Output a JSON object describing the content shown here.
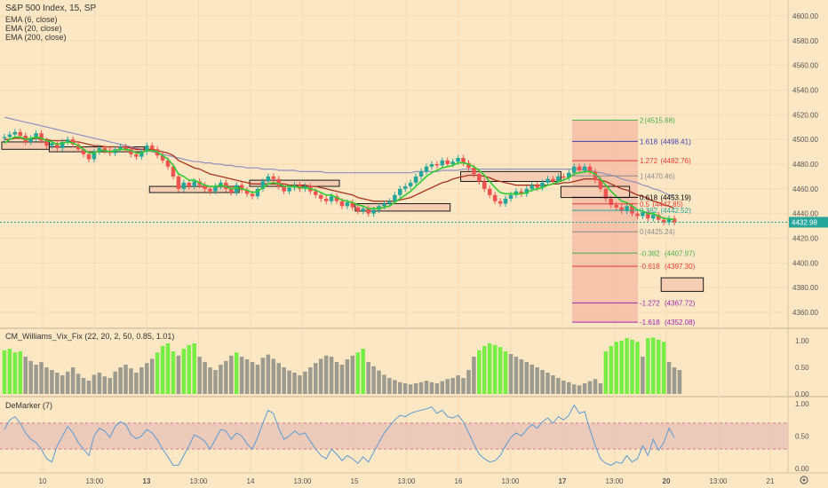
{
  "header": {
    "title": "S&P 500 Index, 15, SP",
    "studies": [
      "EMA (6, close)",
      "EMA (20, close)",
      "EMA (200, close)"
    ]
  },
  "price_scale": {
    "ticks": [
      "4600.00",
      "4580.00",
      "4560.00",
      "4540.00",
      "4520.00",
      "4500.00",
      "4480.00",
      "4460.00",
      "4440.00",
      "4420.00",
      "4400.00",
      "4380.00",
      "4360.00"
    ],
    "last_price": "4432.98"
  },
  "fib_levels": [
    {
      "ratio": "2",
      "price": "4515.68",
      "color": "#4caf50"
    },
    {
      "ratio": "1.618",
      "price": "4498.41",
      "color": "#3f3fb0"
    },
    {
      "ratio": "1.272",
      "price": "4482.76",
      "color": "#e53935"
    },
    {
      "ratio": "1",
      "price": "4470.46",
      "color": "#8a8a8a"
    },
    {
      "ratio": "0.618",
      "price": "4453.19",
      "color": "#000000"
    },
    {
      "ratio": "0.5",
      "price": "4447.85",
      "color": "#e53935"
    },
    {
      "ratio": "0.382",
      "price": "4442.52",
      "color": "#26a69a"
    },
    {
      "ratio": "0",
      "price": "4425.24",
      "color": "#8a8a8a"
    },
    {
      "ratio": "-0.382",
      "price": "4407.97",
      "color": "#4caf50"
    },
    {
      "ratio": "-0.618",
      "price": "4397.30",
      "color": "#e53935"
    },
    {
      "ratio": "-1.272",
      "price": "4367.72",
      "color": "#9c27b0"
    },
    {
      "ratio": "-1.618",
      "price": "4352.08",
      "color": "#9c27b0"
    }
  ],
  "vix_panel": {
    "label": "CM_Williams_Vix_Fix (22, 20, 2, 50, 0.85, 1.01)",
    "ticks": [
      "1.00",
      "0.50",
      "0.00"
    ]
  },
  "demarker_panel": {
    "label": "DeMarker (7)",
    "ticks": [
      "1.00",
      "0.50",
      "0.00"
    ]
  },
  "time_axis": [
    "10",
    "13:00",
    "13",
    "13:00",
    "14",
    "13:00",
    "15",
    "13:00",
    "16",
    "13:00",
    "17",
    "13:00",
    "20",
    "13:00",
    "21"
  ],
  "colors": {
    "background": "#fce7c4",
    "up_candle": "#26a69a",
    "down_candle": "#ef5350",
    "ema6": "#2ecc2e",
    "ema20": "#a5321e",
    "ema200": "#8f8fc0",
    "vix_high": "#76ee44",
    "vix_low": "#9b9b8f",
    "demarker_line": "#5b9bd5",
    "demarker_band": "#e6c3b6"
  },
  "chart_data": {
    "type": "candlestick",
    "title": "S&P 500 Index, 15, SP",
    "y_range": [
      4350,
      4610
    ],
    "price_series": [
      4502,
      4504,
      4506,
      4503,
      4498,
      4501,
      4505,
      4499,
      4495,
      4497,
      4493,
      4498,
      4500,
      4496,
      4492,
      4488,
      4484,
      4490,
      4493,
      4491,
      4489,
      4492,
      4494,
      4492,
      4488,
      4486,
      4490,
      4495,
      4492,
      4487,
      4483,
      4478,
      4470,
      4460,
      4465,
      4462,
      4466,
      4463,
      4460,
      4458,
      4462,
      4465,
      4460,
      4457,
      4463,
      4459,
      4456,
      4454,
      4460,
      4466,
      4470,
      4468,
      4462,
      4458,
      4461,
      4463,
      4460,
      4462,
      4458,
      4455,
      4452,
      4450,
      4454,
      4450,
      4446,
      4449,
      4445,
      4442,
      4444,
      4440,
      4443,
      4446,
      4448,
      4450,
      4455,
      4460,
      4462,
      4465,
      4470,
      4474,
      4478,
      4480,
      4479,
      4483,
      4480,
      4482,
      4485,
      4481,
      4477,
      4472,
      4466,
      4460,
      4455,
      4450,
      4448,
      4452,
      4455,
      4458,
      4456,
      4460,
      4463,
      4461,
      4465,
      4468,
      4466,
      4470,
      4469,
      4473,
      4478,
      4475,
      4478,
      4474,
      4467,
      4460,
      4452,
      4447,
      4445,
      4442,
      4446,
      4440,
      4438,
      4441,
      4436,
      4439,
      4435,
      4433,
      4436,
      4433
    ],
    "ema6": [
      4497,
      4500,
      4502,
      4502,
      4500,
      4501,
      4502,
      4501,
      4499,
      4498,
      4496,
      4497,
      4498,
      4497,
      4495,
      4492,
      4489,
      4489,
      4491,
      4491,
      4490,
      4491,
      4492,
      4492,
      4491,
      4489,
      4489,
      4491,
      4491,
      4490,
      4487,
      4484,
      4479,
      4472,
      4470,
      4467,
      4467,
      4465,
      4463,
      4462,
      4462,
      4463,
      4462,
      4460,
      4461,
      4460,
      4459,
      4457,
      4458,
      4461,
      4464,
      4465,
      4464,
      4462,
      4462,
      4462,
      4461,
      4461,
      4460,
      4459,
      4457,
      4455,
      4455,
      4453,
      4451,
      4450,
      4449,
      4447,
      4446,
      4444,
      4444,
      4444,
      4445,
      4446,
      4449,
      4452,
      4455,
      4458,
      4462,
      4466,
      4470,
      4473,
      4475,
      4477,
      4478,
      4479,
      4481,
      4481,
      4480,
      4478,
      4475,
      4471,
      4466,
      4461,
      4457,
      4456,
      4456,
      4456,
      4456,
      4457,
      4459,
      4460,
      4461,
      4463,
      4464,
      4466,
      4467,
      4469,
      4472,
      4473,
      4474,
      4474,
      4472,
      4468,
      4463,
      4458,
      4454,
      4450,
      4449,
      4446,
      4443,
      4442,
      4440,
      4440,
      4438,
      4436,
      4436,
      4435
    ],
    "ema20": [
      4500,
      4500,
      4501,
      4501,
      4500,
      4500,
      4501,
      4500,
      4500,
      4499,
      4499,
      4499,
      4499,
      4498,
      4498,
      4497,
      4496,
      4495,
      4495,
      4494,
      4494,
      4494,
      4494,
      4494,
      4493,
      4492,
      4492,
      4492,
      4492,
      4491,
      4490,
      4489,
      4487,
      4483,
      4481,
      4479,
      4477,
      4476,
      4474,
      4472,
      4471,
      4470,
      4469,
      4468,
      4467,
      4466,
      4465,
      4464,
      4464,
      4464,
      4464,
      4464,
      4464,
      4464,
      4463,
      4463,
      4463,
      4463,
      4462,
      4462,
      4461,
      4460,
      4459,
      4458,
      4457,
      4456,
      4455,
      4453,
      4452,
      4451,
      4450,
      4450,
      4450,
      4450,
      4450,
      4451,
      4452,
      4453,
      4455,
      4457,
      4459,
      4461,
      4463,
      4465,
      4466,
      4468,
      4469,
      4470,
      4471,
      4471,
      4471,
      4470,
      4469,
      4467,
      4466,
      4465,
      4464,
      4463,
      4463,
      4463,
      4463,
      4463,
      4463,
      4463,
      4464,
      4464,
      4465,
      4465,
      4466,
      4467,
      4468,
      4468,
      4468,
      4467,
      4466,
      4464,
      4462,
      4460,
      4459,
      4457,
      4455,
      4454,
      4452,
      4450,
      4449,
      4447,
      4446,
      4444
    ],
    "ema200": [
      4518,
      4517,
      4516,
      4515,
      4514,
      4513,
      4512,
      4511,
      4510,
      4509,
      4508,
      4507,
      4506,
      4505,
      4504,
      4503,
      4502,
      4501,
      4500,
      4499,
      4498,
      4497,
      4496,
      4495,
      4494,
      4493,
      4492,
      4491,
      4490,
      4489,
      4488,
      4487,
      4486,
      4485,
      4484,
      4483,
      4482,
      4482,
      4481,
      4481,
      4480,
      4480,
      4479,
      4479,
      4478,
      4478,
      4477,
      4477,
      4477,
      4476,
      4476,
      4476,
      4475,
      4475,
      4475,
      4475,
      4474,
      4474,
      4474,
      4474,
      4474,
      4473,
      4473,
      4473,
      4473,
      4473,
      4473,
      4473,
      4473,
      4473,
      4473,
      4473,
      4473,
      4473,
      4473,
      4473,
      4473,
      4473,
      4474,
      4474,
      4474,
      4474,
      4474,
      4475,
      4475,
      4475,
      4475,
      4476,
      4476,
      4476,
      4476,
      4476,
      4476,
      4476,
      4476,
      4476,
      4476,
      4476,
      4476,
      4476,
      4476,
      4476,
      4476,
      4476,
      4476,
      4476,
      4476,
      4476,
      4476,
      4476,
      4475,
      4475,
      4474,
      4473,
      4472,
      4471,
      4470,
      4468,
      4467,
      4466,
      4465,
      4463,
      4462,
      4460,
      4459,
      4457,
      4455,
      4454
    ],
    "vix_fix": [
      0.82,
      0.85,
      0.78,
      0.8,
      0.7,
      0.62,
      0.55,
      0.6,
      0.5,
      0.45,
      0.4,
      0.35,
      0.42,
      0.5,
      0.38,
      0.3,
      0.25,
      0.36,
      0.4,
      0.33,
      0.3,
      0.42,
      0.5,
      0.55,
      0.48,
      0.4,
      0.5,
      0.58,
      0.66,
      0.78,
      0.9,
      0.95,
      0.8,
      0.72,
      0.85,
      0.92,
      0.95,
      0.7,
      0.6,
      0.5,
      0.45,
      0.55,
      0.62,
      0.72,
      0.78,
      0.7,
      0.65,
      0.6,
      0.55,
      0.68,
      0.74,
      0.66,
      0.58,
      0.5,
      0.44,
      0.4,
      0.35,
      0.42,
      0.5,
      0.58,
      0.66,
      0.72,
      0.7,
      0.6,
      0.55,
      0.65,
      0.72,
      0.78,
      0.85,
      0.6,
      0.52,
      0.44,
      0.36,
      0.3,
      0.26,
      0.22,
      0.2,
      0.18,
      0.2,
      0.22,
      0.25,
      0.22,
      0.2,
      0.24,
      0.28,
      0.3,
      0.35,
      0.3,
      0.45,
      0.7,
      0.82,
      0.9,
      0.95,
      0.92,
      0.88,
      0.8,
      0.75,
      0.7,
      0.65,
      0.6,
      0.55,
      0.5,
      0.45,
      0.4,
      0.35,
      0.3,
      0.25,
      0.22,
      0.18,
      0.16,
      0.2,
      0.24,
      0.28,
      0.2,
      0.8,
      0.9,
      0.98,
      1.0,
      1.05,
      1.02,
      0.98,
      0.7,
      1.05,
      1.06,
      1.02,
      0.98,
      0.6,
      0.5,
      0.45
    ],
    "demarker": [
      0.6,
      0.75,
      0.8,
      0.7,
      0.55,
      0.45,
      0.4,
      0.3,
      0.15,
      0.1,
      0.35,
      0.5,
      0.65,
      0.55,
      0.4,
      0.3,
      0.2,
      0.5,
      0.62,
      0.58,
      0.48,
      0.65,
      0.72,
      0.68,
      0.52,
      0.46,
      0.5,
      0.6,
      0.55,
      0.44,
      0.3,
      0.18,
      0.05,
      0.05,
      0.2,
      0.35,
      0.52,
      0.48,
      0.42,
      0.3,
      0.45,
      0.6,
      0.58,
      0.45,
      0.55,
      0.5,
      0.38,
      0.3,
      0.48,
      0.7,
      0.9,
      0.85,
      0.62,
      0.45,
      0.5,
      0.58,
      0.52,
      0.55,
      0.42,
      0.3,
      0.2,
      0.15,
      0.3,
      0.22,
      0.12,
      0.2,
      0.15,
      0.08,
      0.18,
      0.1,
      0.25,
      0.4,
      0.55,
      0.65,
      0.75,
      0.82,
      0.8,
      0.85,
      0.88,
      0.9,
      0.92,
      0.95,
      0.85,
      0.9,
      0.8,
      0.78,
      0.82,
      0.72,
      0.55,
      0.38,
      0.22,
      0.15,
      0.1,
      0.12,
      0.2,
      0.35,
      0.48,
      0.55,
      0.5,
      0.6,
      0.68,
      0.62,
      0.72,
      0.78,
      0.7,
      0.8,
      0.75,
      0.82,
      0.98,
      0.85,
      0.88,
      0.6,
      0.35,
      0.15,
      0.08,
      0.05,
      0.1,
      0.08,
      0.2,
      0.1,
      0.15,
      0.35,
      0.2,
      0.45,
      0.28,
      0.4,
      0.62,
      0.48
    ],
    "demarker_bands": [
      0.3,
      0.7
    ],
    "demarker_range": [
      0,
      1
    ],
    "vix_range": [
      0,
      1
    ],
    "fib_range": [
      4352.08,
      4515.68
    ]
  }
}
